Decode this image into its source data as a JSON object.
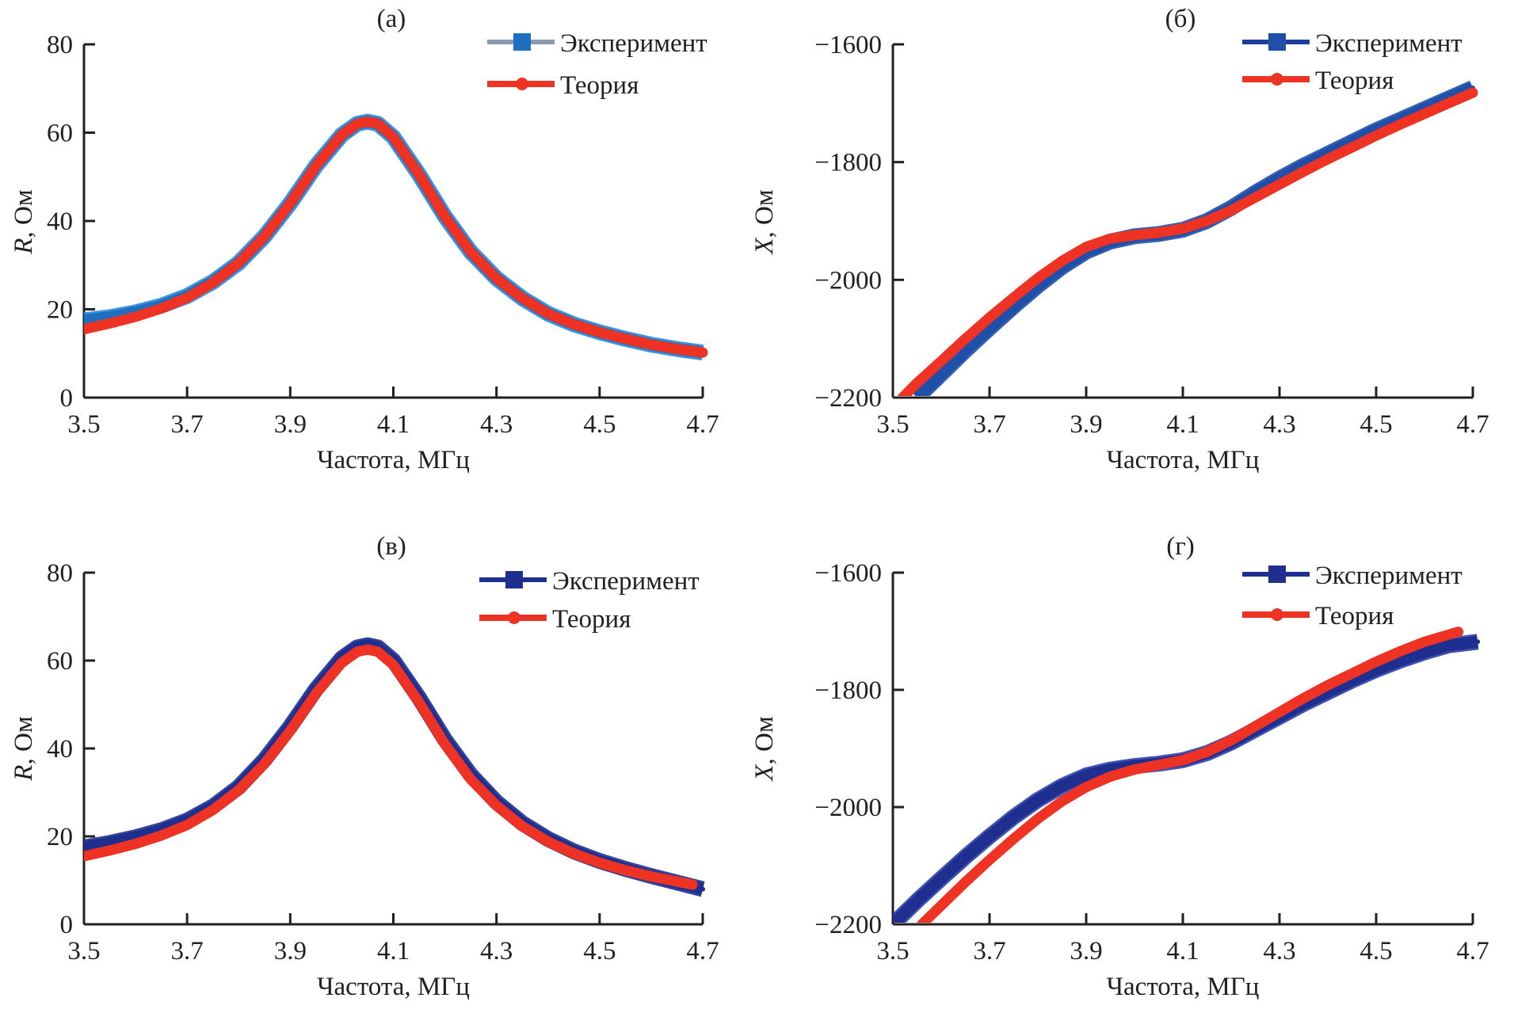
{
  "chart_data": [
    {
      "type": "line",
      "panel_label": "(а)",
      "xlabel": "Частота, МГц",
      "ylabel_var": "R",
      "ylabel_unit": ", Ом",
      "xlim": [
        3.5,
        4.7
      ],
      "ylim": [
        0,
        80
      ],
      "xticks": [
        "3.5",
        "3.7",
        "3.9",
        "4.1",
        "4.3",
        "4.5",
        "4.7"
      ],
      "yticks": [
        "0",
        "20",
        "40",
        "60",
        "80"
      ],
      "grid": false,
      "legend_position": "top-right",
      "series": [
        {
          "name": "Эксперимент",
          "color": "#1f6fc0",
          "edge_color": "#2a8ad8",
          "line_color": "#8a9ab0",
          "marker": "square",
          "x": [
            3.5,
            3.55,
            3.6,
            3.65,
            3.7,
            3.75,
            3.8,
            3.85,
            3.9,
            3.95,
            4.0,
            4.03,
            4.05,
            4.07,
            4.1,
            4.15,
            4.2,
            4.25,
            4.3,
            4.35,
            4.4,
            4.45,
            4.5,
            4.55,
            4.6,
            4.65,
            4.7
          ],
          "y": [
            17.5,
            18.2,
            19.3,
            20.8,
            23.0,
            26.2,
            30.5,
            36.5,
            44.0,
            52.5,
            59.5,
            62.0,
            62.5,
            62.0,
            59.0,
            50.5,
            41.0,
            33.0,
            27.0,
            22.5,
            19.0,
            16.6,
            14.8,
            13.3,
            12.0,
            11.0,
            10.2
          ]
        },
        {
          "name": "Теория",
          "color": "#ee3224",
          "marker": "circle",
          "x": [
            3.5,
            3.55,
            3.6,
            3.65,
            3.7,
            3.75,
            3.8,
            3.85,
            3.9,
            3.95,
            4.0,
            4.03,
            4.05,
            4.07,
            4.1,
            4.15,
            4.2,
            4.25,
            4.3,
            4.35,
            4.4,
            4.45,
            4.5,
            4.55,
            4.6,
            4.65,
            4.7
          ],
          "y": [
            15.5,
            16.8,
            18.3,
            20.2,
            22.6,
            26.0,
            30.5,
            36.5,
            44.0,
            52.5,
            59.5,
            62.0,
            62.5,
            62.0,
            59.0,
            50.5,
            41.0,
            33.0,
            27.0,
            22.5,
            19.0,
            16.6,
            14.8,
            13.3,
            12.0,
            11.0,
            10.2
          ]
        }
      ]
    },
    {
      "type": "line",
      "panel_label": "(б)",
      "xlabel": "Частота, МГц",
      "ylabel_var": "X",
      "ylabel_unit": ", Ом",
      "xlim": [
        3.5,
        4.7
      ],
      "ylim": [
        -2200,
        -1600
      ],
      "xticks": [
        "3.5",
        "3.7",
        "3.9",
        "4.1",
        "4.3",
        "4.5",
        "4.7"
      ],
      "yticks": [
        "−2200",
        "−2000",
        "−1800",
        "−1600"
      ],
      "grid": false,
      "legend_position": "top-right",
      "series": [
        {
          "name": "Эксперимент",
          "color": "#1f4fa8",
          "edge_color": "#1f4fa8",
          "line_color": "#1f3f9f",
          "marker": "square",
          "x": [
            3.55,
            3.6,
            3.65,
            3.7,
            3.75,
            3.8,
            3.85,
            3.9,
            3.95,
            4.0,
            4.05,
            4.1,
            4.15,
            4.2,
            4.25,
            4.3,
            4.35,
            4.4,
            4.45,
            4.5,
            4.55,
            4.6,
            4.65,
            4.7
          ],
          "y": [
            -2200,
            -2160,
            -2120,
            -2082,
            -2045,
            -2010,
            -1978,
            -1952,
            -1935,
            -1926,
            -1922,
            -1915,
            -1900,
            -1878,
            -1852,
            -1828,
            -1806,
            -1786,
            -1766,
            -1746,
            -1728,
            -1710,
            -1692,
            -1674
          ]
        },
        {
          "name": "Теория",
          "color": "#ee3224",
          "marker": "circle",
          "x": [
            3.52,
            3.55,
            3.6,
            3.65,
            3.7,
            3.75,
            3.8,
            3.85,
            3.9,
            3.95,
            4.0,
            4.05,
            4.1,
            4.15,
            4.2,
            4.25,
            4.3,
            4.35,
            4.4,
            4.45,
            4.5,
            4.55,
            4.6,
            4.65,
            4.7
          ],
          "y": [
            -2200,
            -2175,
            -2138,
            -2100,
            -2064,
            -2030,
            -1997,
            -1968,
            -1944,
            -1930,
            -1924,
            -1920,
            -1913,
            -1900,
            -1882,
            -1860,
            -1838,
            -1816,
            -1795,
            -1775,
            -1755,
            -1736,
            -1718,
            -1700,
            -1682
          ]
        }
      ]
    },
    {
      "type": "line",
      "panel_label": "(в)",
      "xlabel": "Частота, МГц",
      "ylabel_var": "R",
      "ylabel_unit": ", Ом",
      "xlim": [
        3.5,
        4.7
      ],
      "ylim": [
        0,
        80
      ],
      "xticks": [
        "3.5",
        "3.7",
        "3.9",
        "4.1",
        "4.3",
        "4.5",
        "4.7"
      ],
      "yticks": [
        "0",
        "20",
        "40",
        "60",
        "80"
      ],
      "grid": false,
      "legend_position": "top-right",
      "series": [
        {
          "name": "Эксперимент",
          "color": "#1f2f8f",
          "edge_color": "#1f2f8f",
          "line_color": "#1f2f8f",
          "marker": "square",
          "x": [
            3.5,
            3.55,
            3.6,
            3.65,
            3.7,
            3.75,
            3.8,
            3.85,
            3.9,
            3.95,
            4.0,
            4.03,
            4.05,
            4.07,
            4.1,
            4.15,
            4.2,
            4.25,
            4.3,
            4.35,
            4.4,
            4.45,
            4.5,
            4.55,
            4.6,
            4.65,
            4.7
          ],
          "y": [
            17.5,
            18.5,
            19.8,
            21.4,
            23.6,
            26.8,
            31.2,
            37.4,
            45.0,
            53.5,
            60.5,
            63.0,
            63.5,
            63.0,
            60.0,
            51.5,
            42.0,
            34.0,
            27.8,
            23.0,
            19.4,
            16.6,
            14.4,
            12.6,
            11.0,
            9.5,
            8.0
          ]
        },
        {
          "name": "Теория",
          "color": "#ee3224",
          "marker": "circle",
          "x": [
            3.5,
            3.55,
            3.6,
            3.65,
            3.7,
            3.75,
            3.8,
            3.85,
            3.9,
            3.95,
            4.0,
            4.03,
            4.05,
            4.07,
            4.1,
            4.15,
            4.2,
            4.25,
            4.3,
            4.35,
            4.4,
            4.45,
            4.5,
            4.55,
            4.6,
            4.68
          ],
          "y": [
            15.5,
            16.8,
            18.3,
            20.2,
            22.6,
            26.0,
            30.5,
            36.5,
            44.0,
            52.5,
            59.5,
            62.0,
            62.5,
            62.0,
            59.0,
            50.5,
            41.0,
            33.0,
            27.0,
            22.3,
            18.8,
            16.1,
            14.0,
            12.3,
            10.9,
            9.0
          ]
        }
      ]
    },
    {
      "type": "line",
      "panel_label": "(г)",
      "xlabel": "Частота, МГц",
      "ylabel_var": "X",
      "ylabel_unit": ", Ом",
      "xlim": [
        3.5,
        4.7
      ],
      "ylim": [
        -2200,
        -1600
      ],
      "xticks": [
        "3.5",
        "3.7",
        "3.9",
        "4.1",
        "4.3",
        "4.5",
        "4.7"
      ],
      "yticks": [
        "−2200",
        "−2000",
        "−1800",
        "−1600"
      ],
      "grid": false,
      "legend_position": "top-right",
      "series": [
        {
          "name": "Эксперимент",
          "color": "#1f2f8f",
          "edge_color": "#2a3fa8",
          "line_color": "#1f2f8f",
          "marker": "square",
          "x": [
            3.5,
            3.55,
            3.6,
            3.65,
            3.7,
            3.75,
            3.8,
            3.85,
            3.9,
            3.95,
            4.0,
            4.05,
            4.1,
            4.15,
            4.2,
            4.25,
            4.3,
            4.35,
            4.4,
            4.45,
            4.5,
            4.55,
            4.6,
            4.65,
            4.71
          ],
          "y": [
            -2200,
            -2160,
            -2122,
            -2085,
            -2050,
            -2017,
            -1988,
            -1964,
            -1946,
            -1936,
            -1930,
            -1926,
            -1920,
            -1908,
            -1890,
            -1868,
            -1846,
            -1824,
            -1804,
            -1784,
            -1766,
            -1750,
            -1736,
            -1724,
            -1718
          ]
        },
        {
          "name": "Теория",
          "color": "#ee3224",
          "marker": "circle",
          "x": [
            3.56,
            3.6,
            3.65,
            3.7,
            3.75,
            3.8,
            3.85,
            3.9,
            3.95,
            4.0,
            4.05,
            4.1,
            4.15,
            4.2,
            4.25,
            4.3,
            4.35,
            4.4,
            4.45,
            4.5,
            4.55,
            4.6,
            4.67
          ],
          "y": [
            -2200,
            -2168,
            -2128,
            -2090,
            -2054,
            -2020,
            -1990,
            -1966,
            -1948,
            -1936,
            -1928,
            -1920,
            -1906,
            -1886,
            -1862,
            -1838,
            -1814,
            -1792,
            -1772,
            -1752,
            -1734,
            -1718,
            -1701
          ]
        }
      ]
    }
  ]
}
